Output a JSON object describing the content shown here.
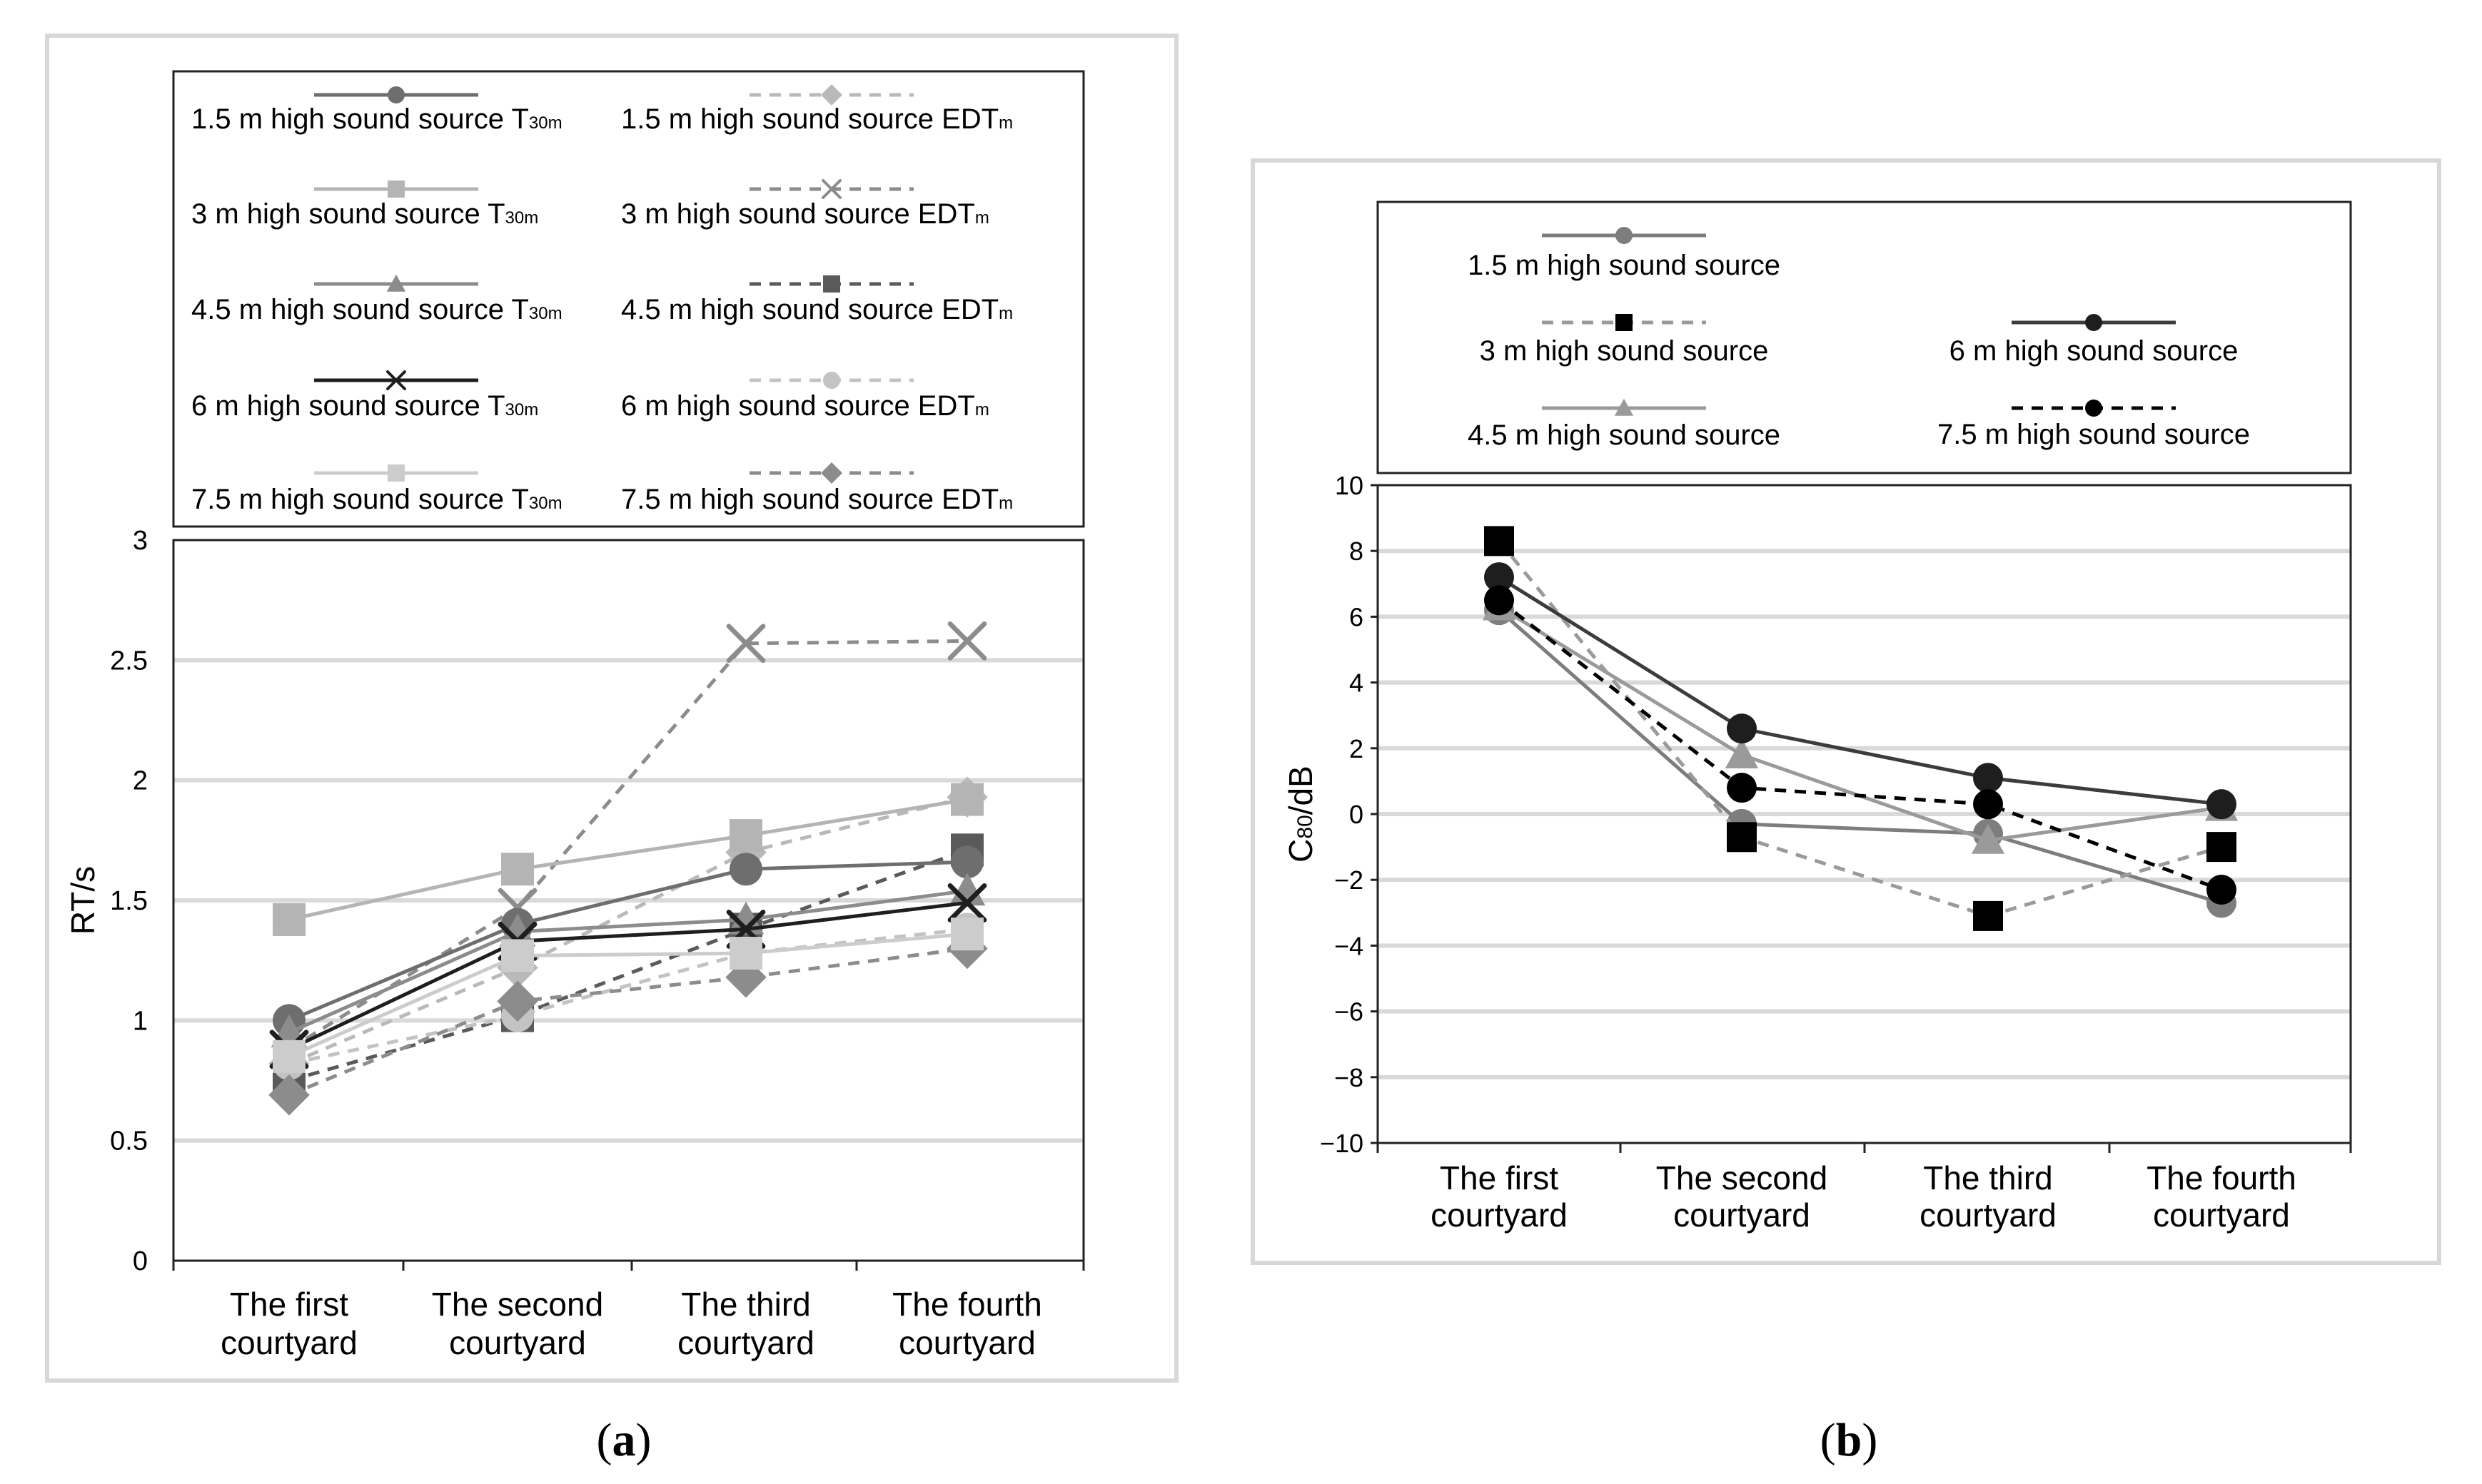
{
  "captions": {
    "a_open": "(",
    "a_letter": "a",
    "a_close": ")",
    "b_open": "(",
    "b_letter": "b",
    "b_close": ")"
  },
  "chart_data": [
    {
      "id": "a",
      "type": "line",
      "title": "",
      "xlabel": "",
      "ylabel": "RT/s",
      "ylim": [
        0,
        3
      ],
      "yticks": [
        "0",
        "0.5",
        "1",
        "1.5",
        "2",
        "2.5",
        "3"
      ],
      "categories": [
        "The first courtyard",
        "The second courtyard",
        "The third courtyard",
        "The fourth courtyard"
      ],
      "category_lines": [
        [
          "The first",
          "courtyard"
        ],
        [
          "The second",
          "courtyard"
        ],
        [
          "The third",
          "courtyard"
        ],
        [
          "The fourth",
          "courtyard"
        ]
      ],
      "grid": true,
      "legend_position": "top",
      "series": [
        {
          "name": "1.5 m high sound source T30m",
          "legend_text": "1.5 m high sound source T",
          "legend_sub": "30m",
          "values": [
            1.0,
            1.4,
            1.63,
            1.66
          ],
          "color": "#6e6e6e",
          "dash": false,
          "marker": "circle"
        },
        {
          "name": "3 m high sound source T30m",
          "legend_text": "3 m high sound source T",
          "legend_sub": "30m",
          "values": [
            1.42,
            1.63,
            1.77,
            1.92
          ],
          "color": "#b4b4b4",
          "dash": false,
          "marker": "square"
        },
        {
          "name": "4.5 m high sound source T30m",
          "legend_text": "4.5 m high sound source T",
          "legend_sub": "30m",
          "values": [
            0.95,
            1.37,
            1.42,
            1.54
          ],
          "color": "#8c8c8c",
          "dash": false,
          "marker": "triangle"
        },
        {
          "name": "6 m high sound source T30m",
          "legend_text": "6 m high sound source  T",
          "legend_sub": "30m",
          "values": [
            0.88,
            1.33,
            1.38,
            1.49
          ],
          "color": "#1e1e1e",
          "dash": false,
          "marker": "x"
        },
        {
          "name": "7.5 m high sound source T30m",
          "legend_text": "7.5 m high sound source T",
          "legend_sub": "30m",
          "values": [
            0.85,
            1.27,
            1.28,
            1.36
          ],
          "color": "#cccccc",
          "dash": false,
          "marker": "square"
        },
        {
          "name": "1.5 m high sound source EDTm",
          "legend_text": "1.5 m high sound source EDT",
          "legend_sub": "m",
          "values": [
            0.82,
            1.22,
            1.7,
            1.93
          ],
          "color": "#b9b9b9",
          "dash": true,
          "marker": "diamond"
        },
        {
          "name": "3 m high sound source EDTm",
          "legend_text": "3 m high sound source EDT",
          "legend_sub": "m",
          "values": [
            0.88,
            1.47,
            2.57,
            2.58
          ],
          "color": "#8c8c8c",
          "dash": true,
          "marker": "x"
        },
        {
          "name": "4.5 m high sound source EDTm",
          "legend_text": "4.5 m high sound source EDT",
          "legend_sub": "m",
          "values": [
            0.75,
            1.02,
            1.38,
            1.71
          ],
          "color": "#5a5a5a",
          "dash": true,
          "marker": "square"
        },
        {
          "name": "6 m high sound source EDTm",
          "legend_text": "6 m high sound source EDT",
          "legend_sub": "m",
          "values": [
            0.82,
            1.02,
            1.28,
            1.38
          ],
          "color": "#c3c3c3",
          "dash": true,
          "marker": "circle"
        },
        {
          "name": "7.5 m high sound source EDTm",
          "legend_text": "7.5 m high sound source EDT",
          "legend_sub": "m",
          "values": [
            0.69,
            1.08,
            1.18,
            1.3
          ],
          "color": "#8c8c8c",
          "dash": true,
          "marker": "diamond"
        }
      ]
    },
    {
      "id": "b",
      "type": "line",
      "title": "",
      "xlabel": "",
      "ylabel": "C80/dB",
      "ylabel_parts": [
        "C",
        "80",
        "/dB"
      ],
      "ylim": [
        -10,
        10
      ],
      "yticks": [
        "10",
        "8",
        "6",
        "4",
        "2",
        "0",
        "−2",
        "−4",
        "−6",
        "−8",
        "−10"
      ],
      "ytick_values": [
        10,
        8,
        6,
        4,
        2,
        0,
        -2,
        -4,
        -6,
        -8,
        -10
      ],
      "categories": [
        "The first courtyard",
        "The second courtyard",
        "The third courtyard",
        "The fourth courtyard"
      ],
      "category_lines": [
        [
          "The first",
          "courtyard"
        ],
        [
          "The second",
          "courtyard"
        ],
        [
          "The third",
          "courtyard"
        ],
        [
          "The fourth",
          "courtyard"
        ]
      ],
      "grid": true,
      "legend_position": "top",
      "series": [
        {
          "name": "1.5 m high sound source",
          "values": [
            6.2,
            -0.3,
            -0.6,
            -2.7
          ],
          "color": "#7d7d7d",
          "dash": false,
          "marker": "circle"
        },
        {
          "name": "3 m high sound source",
          "values": [
            8.3,
            -0.7,
            -3.1,
            -1.0
          ],
          "color": "#9a9a9a",
          "dash": true,
          "marker": "square",
          "marker_color": "#000000"
        },
        {
          "name": "4.5 m high sound source",
          "values": [
            6.3,
            1.8,
            -0.8,
            0.2
          ],
          "color": "#9a9a9a",
          "dash": false,
          "marker": "triangle"
        },
        {
          "name": "6 m high sound source",
          "values": [
            7.2,
            2.6,
            1.1,
            0.3
          ],
          "color": "#3c3c3c",
          "dash": false,
          "marker": "circle",
          "marker_color": "#1e1e1e"
        },
        {
          "name": "7.5 m high sound source",
          "values": [
            6.5,
            0.8,
            0.3,
            -2.3
          ],
          "color": "#000000",
          "dash": true,
          "marker": "circle",
          "marker_color": "#000000"
        }
      ]
    }
  ]
}
